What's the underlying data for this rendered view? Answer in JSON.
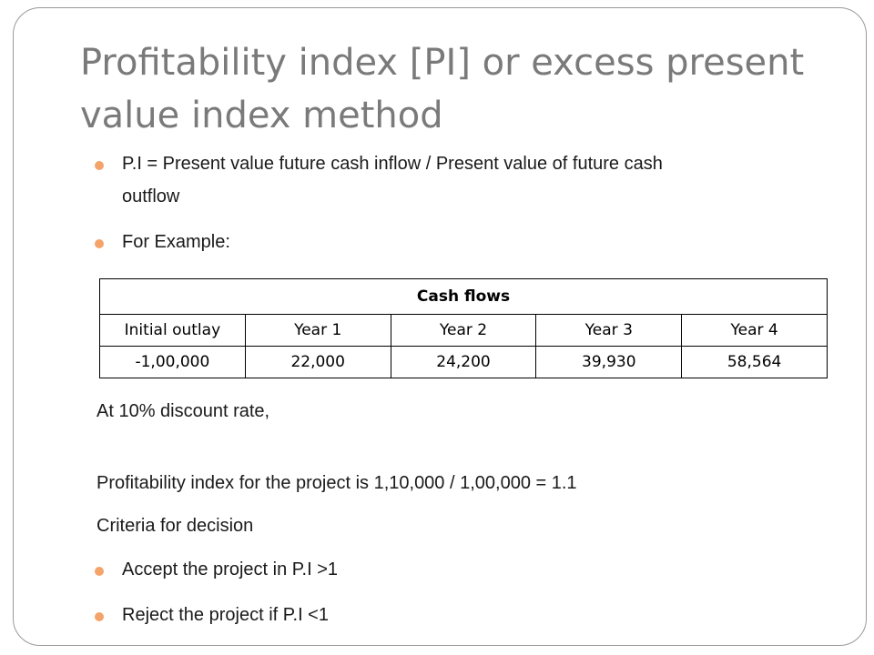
{
  "title": "Profitability index [PI] or excess present value index method",
  "bullets": {
    "formula_line1": "P.I = Present value future cash inflow  / Present value of future cash",
    "formula_line2": "outflow",
    "example": "For Example:"
  },
  "table": {
    "caption": "Cash flows",
    "headers": [
      "Initial outlay",
      "Year 1",
      "Year 2",
      "Year 3",
      "Year 4"
    ],
    "values": [
      "-1,00,000",
      "22,000",
      "24,200",
      "39,930",
      "58,564"
    ]
  },
  "text": {
    "discount": "At 10% discount rate,",
    "index": "Profitability index for the project is 1,10,000 / 1,00,000 = 1.1",
    "criteria": "Criteria for decision"
  },
  "criteria_bullets": {
    "accept": "Accept the project in P.I >1",
    "reject": "Reject the project if P.I <1"
  },
  "colors": {
    "bullet": "#f4a46b",
    "title": "#7a7a7a"
  }
}
